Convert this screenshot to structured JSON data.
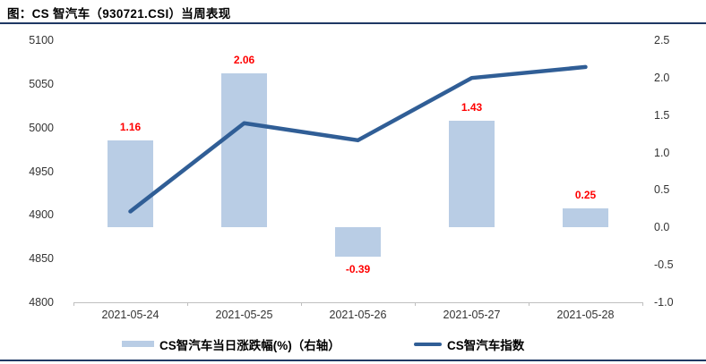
{
  "title": "图：CS 智汽车（930721.CSI）当周表现",
  "colors": {
    "bar_fill": "#B9CDE5",
    "line_stroke": "#305E96",
    "data_label": "#FF0000",
    "rule": "#1F3864",
    "axis_line": "#BFBFBF",
    "tick_text": "#333333",
    "title_text": "#000000"
  },
  "legend": {
    "bar_label": "CS智汽车当日涨跌幅(%)（右轴）",
    "line_label": "CS智汽车指数"
  },
  "chart_data": {
    "type": "bar+line combo",
    "title": "图：CS 智汽车（930721.CSI）当周表现",
    "categories": [
      "2021-05-24",
      "2021-05-25",
      "2021-05-26",
      "2021-05-27",
      "2021-05-28"
    ],
    "series": [
      {
        "name": "CS智汽车当日涨跌幅(%)（右轴）",
        "type": "bar",
        "axis": "right",
        "values": [
          1.16,
          2.06,
          -0.39,
          1.43,
          0.25
        ],
        "labels": [
          "1.16",
          "2.06",
          "-0.39",
          "1.43",
          "0.25"
        ]
      },
      {
        "name": "CS智汽车指数",
        "type": "line",
        "axis": "left",
        "values": [
          4904,
          5005,
          4985.5,
          5056.8,
          5069.4
        ]
      }
    ],
    "left_axis": {
      "min": 4800,
      "max": 5100,
      "step": 50,
      "ticks": [
        "5100",
        "5050",
        "5000",
        "4950",
        "4900",
        "4850",
        "4800"
      ]
    },
    "right_axis": {
      "min": -1.0,
      "max": 2.5,
      "step": 0.5,
      "ticks": [
        "2.5",
        "2.0",
        "1.5",
        "1.0",
        "0.5",
        "0.0",
        "-0.5",
        "-1.0"
      ]
    },
    "grid": false,
    "legend_position": "bottom"
  }
}
